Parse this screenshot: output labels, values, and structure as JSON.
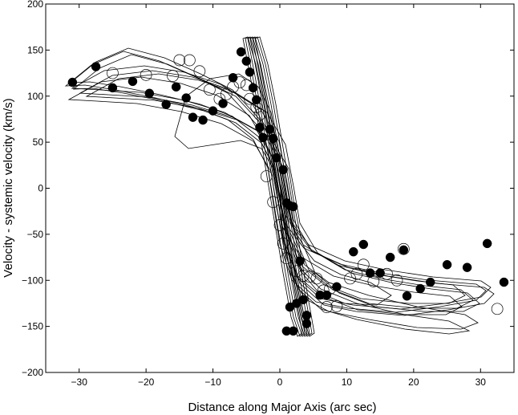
{
  "chart_data": {
    "type": "scatter",
    "title": "",
    "xlabel": "Distance along Major Axis (arc sec)",
    "ylabel": "Velocity - systemic velocity (km/s)",
    "xlim": [
      -35,
      35
    ],
    "ylim": [
      -200,
      200
    ],
    "x_ticks": [
      -30,
      -20,
      -10,
      0,
      10,
      20,
      30
    ],
    "y_ticks": [
      -200,
      -150,
      -100,
      -50,
      0,
      50,
      100,
      150,
      200
    ],
    "grid": false,
    "legend": "none",
    "series": [
      {
        "marker": "filled-circle",
        "color": "#000000",
        "points": [
          [
            -31,
            115
          ],
          [
            -27.5,
            132
          ],
          [
            -25,
            109
          ],
          [
            -22,
            116
          ],
          [
            -19.5,
            103
          ],
          [
            -17,
            91
          ],
          [
            -15.5,
            110
          ],
          [
            -14,
            98
          ],
          [
            -13,
            77
          ],
          [
            -11.5,
            74
          ],
          [
            -10,
            84
          ],
          [
            -8.5,
            92
          ],
          [
            -7,
            120
          ],
          [
            -5.8,
            148
          ],
          [
            -5,
            138
          ],
          [
            -4.5,
            126
          ],
          [
            -4,
            109
          ],
          [
            -3.5,
            96
          ],
          [
            -3,
            66
          ],
          [
            -2.5,
            55
          ],
          [
            -1.5,
            64
          ],
          [
            -1,
            54
          ],
          [
            -0.5,
            33
          ],
          [
            0.5,
            20
          ],
          [
            1,
            -16
          ],
          [
            1.5,
            -19
          ],
          [
            2,
            -20
          ],
          [
            3,
            -79
          ],
          [
            3.5,
            -121
          ],
          [
            4,
            -138
          ],
          [
            4,
            -147
          ],
          [
            1,
            -155
          ],
          [
            2,
            -155
          ],
          [
            1.5,
            -129
          ],
          [
            2.5,
            -125
          ],
          [
            6,
            -116
          ],
          [
            7,
            -116
          ],
          [
            8.5,
            -107
          ],
          [
            11,
            -69
          ],
          [
            12.5,
            -61
          ],
          [
            13.5,
            -92
          ],
          [
            15,
            -92
          ],
          [
            16.5,
            -75
          ],
          [
            18.5,
            -67
          ],
          [
            19,
            -117
          ],
          [
            21,
            -109
          ],
          [
            22.5,
            -102
          ],
          [
            25,
            -83
          ],
          [
            28,
            -86
          ],
          [
            31,
            -60
          ],
          [
            33.5,
            -102
          ]
        ]
      },
      {
        "marker": "open-circle",
        "color": "#000000",
        "points": [
          [
            -25,
            125
          ],
          [
            -20,
            123
          ],
          [
            -16,
            122
          ],
          [
            -15,
            139
          ],
          [
            -13.5,
            139
          ],
          [
            -12,
            127
          ],
          [
            -10.5,
            107
          ],
          [
            -9,
            97
          ],
          [
            -8,
            102
          ],
          [
            -7,
            110
          ],
          [
            -6,
            115
          ],
          [
            -5,
            112
          ],
          [
            -4.5,
            97
          ],
          [
            -3.5,
            88
          ],
          [
            -3,
            80
          ],
          [
            -2,
            13
          ],
          [
            -1,
            -15
          ],
          [
            0,
            -40
          ],
          [
            0.5,
            -60
          ],
          [
            1,
            -76
          ],
          [
            2.5,
            -90
          ],
          [
            3.5,
            -95
          ],
          [
            4.5,
            -96
          ],
          [
            5.5,
            -98
          ],
          [
            6.5,
            -111
          ],
          [
            7,
            -129
          ],
          [
            7.5,
            -109
          ],
          [
            8.5,
            -128
          ],
          [
            10.5,
            -98
          ],
          [
            11.5,
            -93
          ],
          [
            12.5,
            -83
          ],
          [
            14,
            -101
          ],
          [
            16,
            -93
          ],
          [
            17.5,
            -100
          ],
          [
            18.5,
            -66
          ],
          [
            32.5,
            -131
          ]
        ]
      }
    ]
  }
}
